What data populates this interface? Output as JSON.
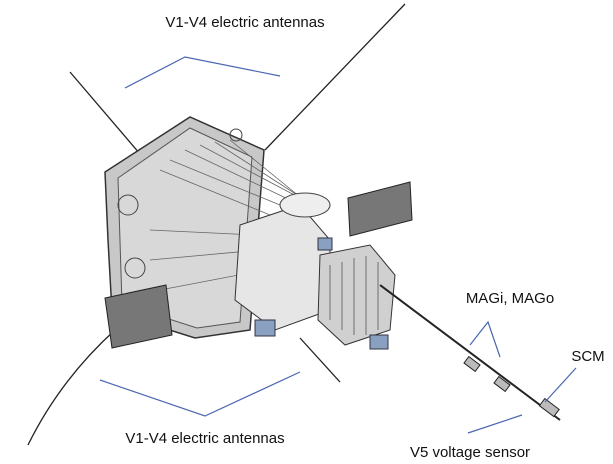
{
  "labels": [
    {
      "text": "V1-V4 electric antennas"
    },
    {
      "text": "MAGi, MAGo"
    },
    {
      "text": "SCM"
    },
    {
      "text": "V1-V4 electric antennas"
    },
    {
      "text": "V5 voltage sensor"
    }
  ]
}
